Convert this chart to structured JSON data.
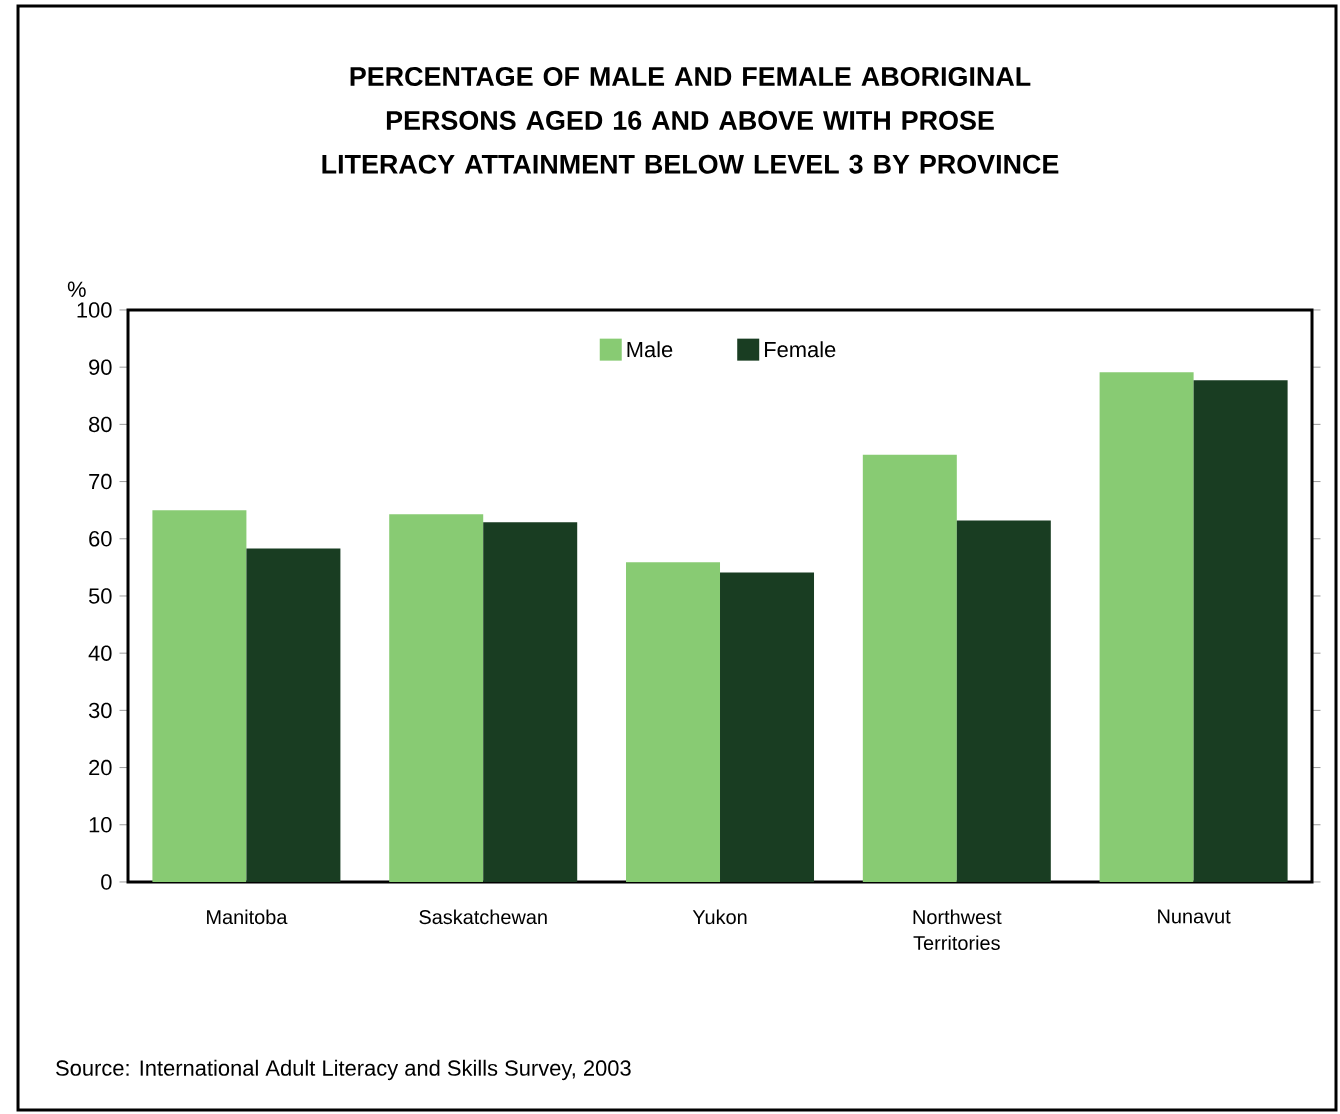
{
  "chart_data": {
    "type": "bar",
    "title": "PERCENTAGE OF MALE AND FEMALE ABORIGINAL PERSONS AGED 16 AND ABOVE WITH PROSE LITERACY ATTAINMENT BELOW LEVEL 3 BY PROVINCE",
    "ylabel": "%",
    "categories": [
      "Manitoba",
      "Saskatchewan",
      "Yukon",
      "Northwest Territories",
      "Nunavut"
    ],
    "series": [
      {
        "name": "Male",
        "color": "#88cb73",
        "values": [
          65.0,
          64.3,
          55.9,
          74.7,
          89.1
        ]
      },
      {
        "name": "Female",
        "color": "#193d22",
        "values": [
          58.3,
          62.9,
          54.1,
          63.2,
          87.7
        ]
      }
    ],
    "ylim": [
      0,
      100
    ],
    "yticks": [
      0,
      10,
      20,
      30,
      40,
      50,
      60,
      70,
      80,
      90,
      100
    ],
    "legend": "top",
    "annotations": [
      "Source: International Adult Literacy and Skills Survey, 2003"
    ]
  }
}
